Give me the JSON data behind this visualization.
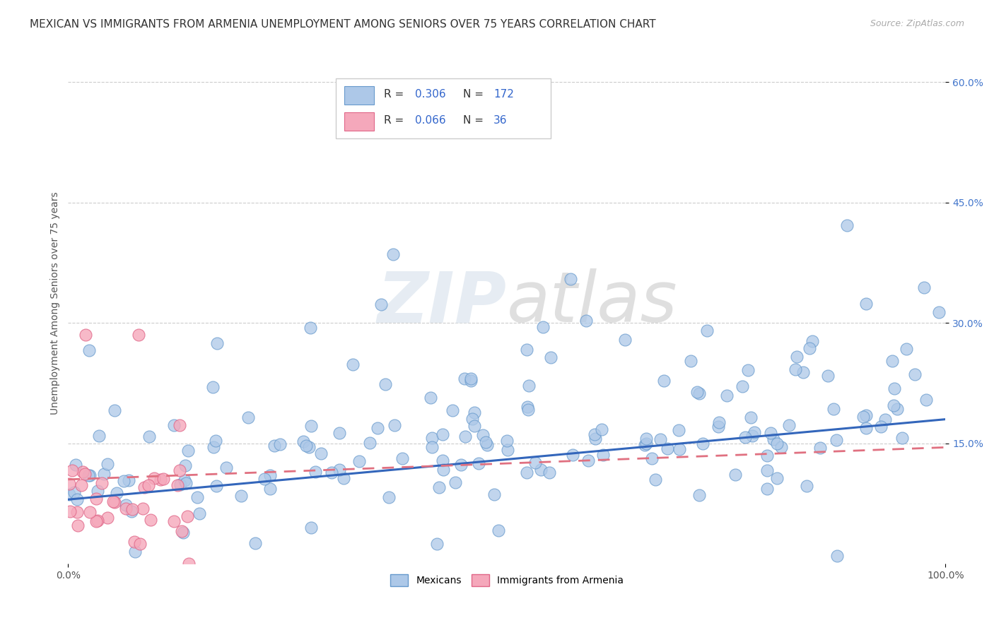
{
  "title": "MEXICAN VS IMMIGRANTS FROM ARMENIA UNEMPLOYMENT AMONG SENIORS OVER 75 YEARS CORRELATION CHART",
  "source": "Source: ZipAtlas.com",
  "ylabel": "Unemployment Among Seniors over 75 years",
  "xlabel": "",
  "xlim": [
    0.0,
    1.0
  ],
  "ylim": [
    0.0,
    0.65
  ],
  "x_tick_positions": [
    0.0,
    1.0
  ],
  "x_tick_labels": [
    "0.0%",
    "100.0%"
  ],
  "y_ticks": [
    0.15,
    0.3,
    0.45,
    0.6
  ],
  "y_tick_labels": [
    "15.0%",
    "30.0%",
    "45.0%",
    "60.0%"
  ],
  "mexican_color": "#adc8e8",
  "armenian_color": "#f5a8bb",
  "mexican_edge": "#6699cc",
  "armenian_edge": "#e06688",
  "trend_mexican": "#3366bb",
  "trend_armenian": "#e07080",
  "R_mexican": 0.306,
  "N_mexican": 172,
  "R_armenian": 0.066,
  "N_armenian": 36,
  "watermark_zip": "ZIP",
  "watermark_atlas": "atlas",
  "legend_label_mexican": "Mexicans",
  "legend_label_armenian": "Immigrants from Armenia",
  "background_color": "#ffffff",
  "plot_bg": "#ffffff",
  "grid_color": "#cccccc",
  "title_fontsize": 11,
  "source_fontsize": 9,
  "ylabel_fontsize": 10,
  "tick_fontsize": 10,
  "legend_fontsize": 10
}
